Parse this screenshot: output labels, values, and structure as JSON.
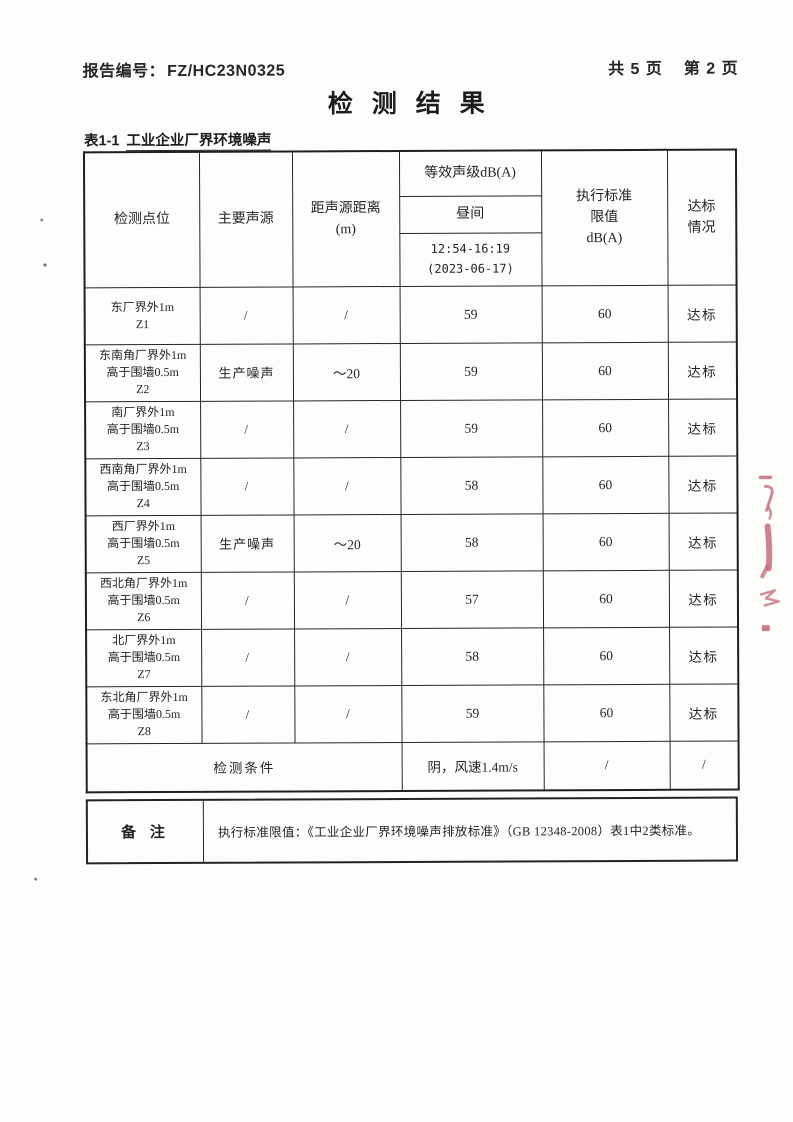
{
  "header": {
    "report_no_label": "报告编号：",
    "report_no": "FZ/HC23N0325",
    "page_total": "共 5 页",
    "page_current": "第 2 页",
    "title": "检 测 结 果"
  },
  "table": {
    "caption_no": "表1-1",
    "caption": "工业企业厂界环境噪声",
    "headers": {
      "point": "检测点位",
      "source": "主要声源",
      "distance_lines": [
        "距声源距离",
        "(m)"
      ],
      "leq": "等效声级dB(A)",
      "daytime": "昼间",
      "time_lines": [
        "12:54-16:19",
        "(2023-06-17)"
      ],
      "limit_lines": [
        "执行标准",
        "限值",
        "dB(A)"
      ],
      "status_lines": [
        "达标",
        "情况"
      ]
    },
    "rows": [
      {
        "point_lines": [
          "东厂界外1m",
          "Z1"
        ],
        "source": "/",
        "distance": "/",
        "leq": "59",
        "limit": "60",
        "status": "达标"
      },
      {
        "point_lines": [
          "东南角厂界外1m",
          "高于围墙0.5m",
          "Z2"
        ],
        "source": "生产噪声",
        "distance": "～20",
        "leq": "59",
        "limit": "60",
        "status": "达标"
      },
      {
        "point_lines": [
          "南厂界外1m",
          "高于围墙0.5m",
          "Z3"
        ],
        "source": "/",
        "distance": "/",
        "leq": "59",
        "limit": "60",
        "status": "达标"
      },
      {
        "point_lines": [
          "西南角厂界外1m",
          "高于围墙0.5m",
          "Z4"
        ],
        "source": "/",
        "distance": "/",
        "leq": "58",
        "limit": "60",
        "status": "达标"
      },
      {
        "point_lines": [
          "西厂界外1m",
          "高于围墙0.5m",
          "Z5"
        ],
        "source": "生产噪声",
        "distance": "～20",
        "leq": "58",
        "limit": "60",
        "status": "达标"
      },
      {
        "point_lines": [
          "西北角厂界外1m",
          "高于围墙0.5m",
          "Z6"
        ],
        "source": "/",
        "distance": "/",
        "leq": "57",
        "limit": "60",
        "status": "达标"
      },
      {
        "point_lines": [
          "北厂界外1m",
          "高于围墙0.5m",
          "Z7"
        ],
        "source": "/",
        "distance": "/",
        "leq": "58",
        "limit": "60",
        "status": "达标"
      },
      {
        "point_lines": [
          "东北角厂界外1m",
          "高于围墙0.5m",
          "Z8"
        ],
        "source": "/",
        "distance": "/",
        "leq": "59",
        "limit": "60",
        "status": "达标"
      }
    ],
    "conditions": {
      "label": "检测条件",
      "value": "阴，风速1.4m/s",
      "limit": "/",
      "status": "/"
    }
  },
  "remark": {
    "label": "备 注",
    "text": "执行标准限值：《工业企业厂界环境噪声排放标准》（GB 12348-2008）表1中2类标准。"
  },
  "colors": {
    "seal_red": "#b5495c",
    "ink": "#262626"
  }
}
